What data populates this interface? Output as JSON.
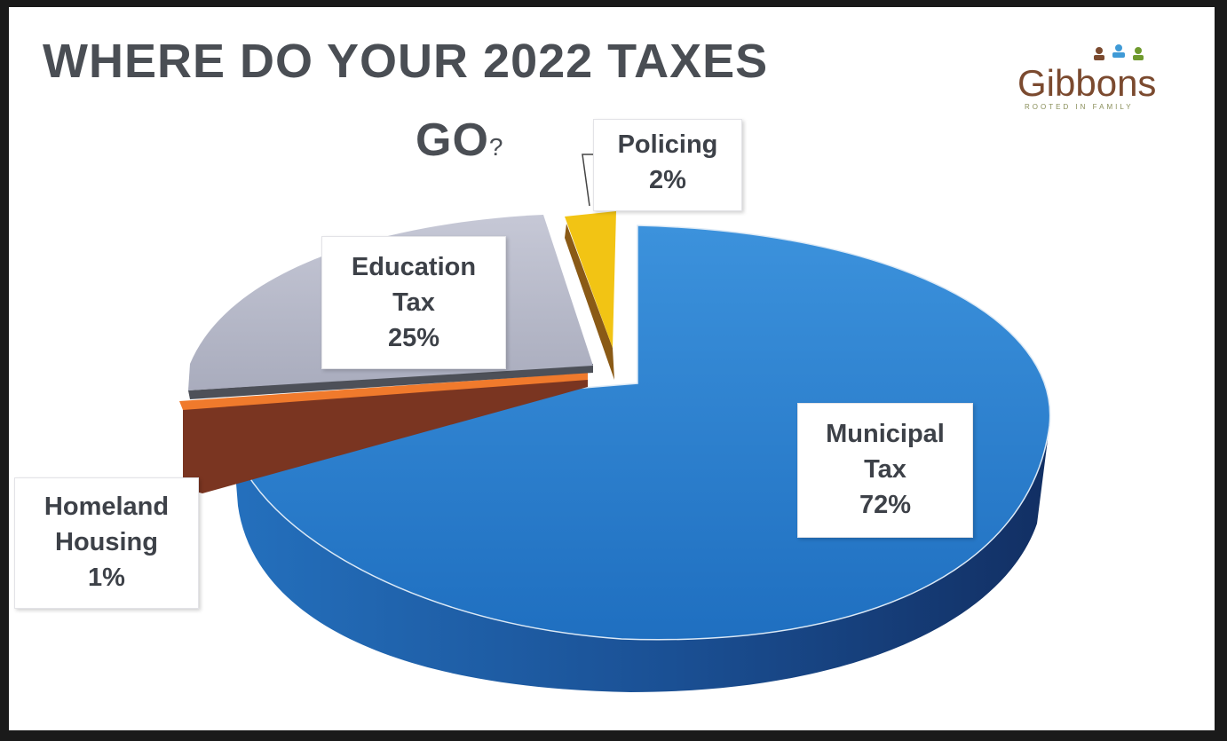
{
  "title": {
    "line1": "WHERE DO YOUR 2022 TAXES",
    "line2": "GO",
    "line2_suffix": "?"
  },
  "logo": {
    "name": "Gibbons",
    "tagline": "ROOTED IN FAMILY"
  },
  "colors": {
    "municipal": "#2f86d3",
    "education": "#b9bccb",
    "policing": "#f2c414",
    "homeland": "#f07a2c",
    "title": "#4a4e54"
  },
  "chart_data": {
    "type": "pie",
    "style": "3d",
    "slices": [
      {
        "label": "Municipal Tax",
        "value": 72,
        "display": "Municipal\nTax\n72%"
      },
      {
        "label": "Homeland Housing",
        "value": 1,
        "display": "Homeland\nHousing\n1%"
      },
      {
        "label": "Education Tax",
        "value": 25,
        "display": "Education\nTax\n25%"
      },
      {
        "label": "Policing",
        "value": 2,
        "display": "Policing\n2%"
      }
    ]
  }
}
